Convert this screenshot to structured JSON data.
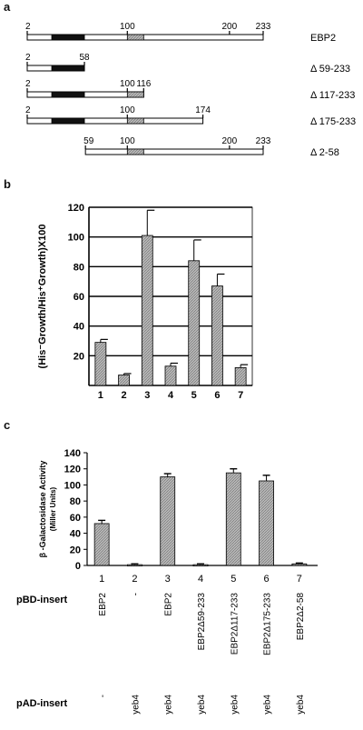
{
  "panel_labels": {
    "a": "a",
    "b": "b",
    "c": "c"
  },
  "panel_a": {
    "constructs": [
      {
        "name": "EBP2",
        "start": 2,
        "end": 233,
        "ticks": [
          {
            "pos": 2,
            "label": "2"
          },
          {
            "pos": 100,
            "label": "100"
          },
          {
            "pos": 200,
            "label": "200"
          },
          {
            "pos": 233,
            "label": "233"
          }
        ]
      },
      {
        "name": "Δ 59-233",
        "start": 2,
        "end": 58,
        "ticks": [
          {
            "pos": 2,
            "label": "2"
          },
          {
            "pos": 58,
            "label": "58"
          }
        ]
      },
      {
        "name": "Δ 117-233",
        "start": 2,
        "end": 116,
        "ticks": [
          {
            "pos": 2,
            "label": "2"
          },
          {
            "pos": 100,
            "label": "100"
          },
          {
            "pos": 116,
            "label": "116"
          }
        ]
      },
      {
        "name": "Δ 175-233",
        "start": 2,
        "end": 174,
        "ticks": [
          {
            "pos": 2,
            "label": "2"
          },
          {
            "pos": 100,
            "label": "100"
          },
          {
            "pos": 174,
            "label": "174"
          }
        ]
      },
      {
        "name": "Δ 2-58",
        "start": 59,
        "end": 233,
        "ticks": [
          {
            "pos": 59,
            "label": "59"
          },
          {
            "pos": 100,
            "label": "100"
          },
          {
            "pos": 200,
            "label": "200"
          },
          {
            "pos": 233,
            "label": "233"
          }
        ]
      }
    ],
    "domains": [
      {
        "kind": "black",
        "start": 26,
        "end": 58
      },
      {
        "kind": "hatched",
        "start": 100,
        "end": 116
      }
    ]
  },
  "chart_data": [
    {
      "type": "bar",
      "panel": "b",
      "categories": [
        "1",
        "2",
        "3",
        "4",
        "5",
        "6",
        "7"
      ],
      "values": [
        29,
        7,
        101,
        13,
        84,
        67,
        12
      ],
      "errors": [
        2,
        1,
        17,
        2,
        14,
        8,
        2
      ],
      "ylabel": "(His⁻Growth/His⁺Growth)X100",
      "ylim": [
        0,
        120
      ],
      "yticks": [
        20,
        40,
        60,
        80,
        100,
        120
      ],
      "grid": true
    },
    {
      "type": "bar",
      "panel": "c",
      "categories": [
        "1",
        "2",
        "3",
        "4",
        "5",
        "6",
        "7"
      ],
      "values": [
        52,
        1,
        110,
        1,
        115,
        105,
        2
      ],
      "errors": [
        4,
        1,
        4,
        1,
        5,
        7,
        1
      ],
      "ylabel": "β -Galactosidase Activity",
      "ylabel2": "(Miller Units)",
      "ylim": [
        0,
        140
      ],
      "yticks": [
        0,
        20,
        40,
        60,
        80,
        100,
        120,
        140
      ],
      "grid": false
    }
  ],
  "panel_c_table": {
    "pbd_label": "pBD-insert",
    "pad_label": "pAD-insert",
    "pbd": [
      "EBP2",
      "-",
      "EBP2",
      "EBP2Δ59-233",
      "EBP2Δ117-233",
      "EBP2Δ175-233",
      "EBP2Δ2-58"
    ],
    "pad": [
      "-",
      "yeb4",
      "yeb4",
      "yeb4",
      "yeb4",
      "yeb4",
      "yeb4"
    ]
  },
  "colors": {
    "bar_fill": "#b8b8b8",
    "domain_black": "#111111",
    "line": "#000000"
  }
}
